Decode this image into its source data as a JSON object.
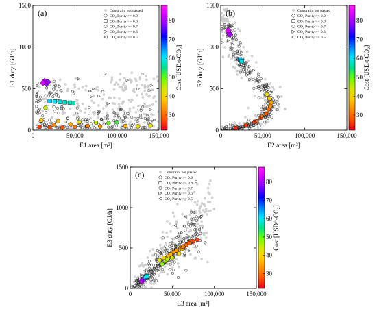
{
  "colors": {
    "constraint_fill": "#d4d4d4",
    "constraint_edge": "#b9b9b9",
    "marker_edge": "#000000",
    "colormap": [
      "#e8001e",
      "#ff4d00",
      "#ff8c00",
      "#ffcc00",
      "#d7e800",
      "#66ff00",
      "#00e08a",
      "#00e5ff",
      "#0080ff",
      "#0000ff",
      "#7d00ff",
      "#d000ff",
      "#ff1aff"
    ]
  },
  "chart_data": [
    {
      "type": "scatter",
      "panel": "(a)",
      "xlabel": "E1 area [m²]",
      "ylabel": "E1 duty [GJ/h]",
      "xlim": [
        0,
        150000
      ],
      "ylim": [
        0,
        1500
      ],
      "xticks": [
        0,
        50000,
        100000,
        150000
      ],
      "xticklabels": [
        "0",
        "50,000",
        "100,000",
        "150,000"
      ],
      "yticks": [
        0,
        500,
        1000,
        1500
      ],
      "yticklabels": [
        "0",
        "500",
        "1000",
        "1500"
      ],
      "colorbar": {
        "label": "Cost [USD/t-CO₂]",
        "min": 22,
        "max": 88,
        "ticks": [
          30,
          40,
          50,
          60,
          70,
          80
        ],
        "ticklabels": [
          "30",
          "40",
          "50",
          "60",
          "70",
          "80"
        ]
      },
      "legend": {
        "position": "top-right",
        "entries": [
          {
            "marker": "gray-circle",
            "label": "Constraint not passed"
          },
          {
            "marker": "diamond",
            "label": "CO₂ Purity >= 0.9"
          },
          {
            "marker": "square",
            "label": "CO₂ Purity >= 0.8"
          },
          {
            "marker": "circle",
            "label": "CO₂ Purity >= 0.7"
          },
          {
            "marker": "triangle-right",
            "label": "CO₂ Purity >= 0.6"
          },
          {
            "marker": "triangle-left",
            "label": "CO₂ Purity >= 0.5"
          }
        ]
      },
      "clusters": [
        {
          "group": "constraint",
          "xmin": 5000,
          "xmax": 150000,
          "ymin": 0,
          "ymax": 650,
          "count": 230,
          "decay": 0.45
        },
        {
          "group": "constraint",
          "xmin": 40000,
          "xmax": 150000,
          "ymin": 200,
          "ymax": 700,
          "count": 60,
          "decay": 1
        },
        {
          "group": "circle",
          "xmin": 4000,
          "xmax": 140000,
          "ymin": 30,
          "ymax": 280,
          "count": 120,
          "decay": 0.5
        },
        {
          "group": "circle",
          "xmin": 4000,
          "xmax": 35000,
          "ymin": 200,
          "ymax": 600,
          "count": 50,
          "decay": 1
        },
        {
          "group": "triangle-right",
          "xmin": 40000,
          "xmax": 150000,
          "ymin": 100,
          "ymax": 700,
          "count": 28,
          "decay": 1
        }
      ],
      "points": [
        {
          "x": 14000,
          "y": 590,
          "cost": 82,
          "m": "diamond"
        },
        {
          "x": 16000,
          "y": 560,
          "cost": 80,
          "m": "diamond"
        },
        {
          "x": 12000,
          "y": 570,
          "cost": 84,
          "m": "diamond"
        },
        {
          "x": 18000,
          "y": 580,
          "cost": 79,
          "m": "diamond"
        },
        {
          "x": 20000,
          "y": 350,
          "cost": 62,
          "m": "square"
        },
        {
          "x": 26000,
          "y": 345,
          "cost": 60,
          "m": "square"
        },
        {
          "x": 32000,
          "y": 340,
          "cost": 59,
          "m": "square"
        },
        {
          "x": 38000,
          "y": 335,
          "cost": 58,
          "m": "square"
        },
        {
          "x": 44000,
          "y": 330,
          "cost": 58,
          "m": "square"
        },
        {
          "x": 48000,
          "y": 325,
          "cost": 57,
          "m": "square"
        },
        {
          "x": 15000,
          "y": 270,
          "cost": 45,
          "m": "circle"
        },
        {
          "x": 10000,
          "y": 120,
          "cost": 38,
          "m": "circle"
        },
        {
          "x": 30000,
          "y": 110,
          "cost": 37,
          "m": "circle"
        },
        {
          "x": 55000,
          "y": 100,
          "cost": 42,
          "m": "circle"
        },
        {
          "x": 75000,
          "y": 90,
          "cost": 45,
          "m": "circle"
        },
        {
          "x": 90000,
          "y": 85,
          "cost": 50,
          "m": "circle"
        },
        {
          "x": 100000,
          "y": 95,
          "cost": 52,
          "m": "circle"
        },
        {
          "x": 8000,
          "y": 40,
          "cost": 26,
          "m": "circle"
        },
        {
          "x": 20000,
          "y": 35,
          "cost": 27,
          "m": "circle"
        },
        {
          "x": 35000,
          "y": 30,
          "cost": 28,
          "m": "circle"
        },
        {
          "x": 50000,
          "y": 40,
          "cost": 30,
          "m": "circle"
        },
        {
          "x": 65000,
          "y": 50,
          "cost": 32,
          "m": "circle"
        },
        {
          "x": 80000,
          "y": 45,
          "cost": 34,
          "m": "circle"
        },
        {
          "x": 110000,
          "y": 50,
          "cost": 36,
          "m": "circle"
        },
        {
          "x": 125000,
          "y": 45,
          "cost": 40,
          "m": "circle"
        },
        {
          "x": 140000,
          "y": 55,
          "cost": 42,
          "m": "circle"
        },
        {
          "x": 25000,
          "y": 60,
          "cost": 33,
          "m": "circle"
        },
        {
          "x": 45000,
          "y": 70,
          "cost": 35,
          "m": "circle"
        }
      ]
    },
    {
      "type": "scatter",
      "panel": "(b)",
      "xlabel": "E2 area [m²]",
      "ylabel": "E2 duty [GJ/h]",
      "xlim": [
        0,
        150000
      ],
      "ylim": [
        0,
        1500
      ],
      "xticks": [
        0,
        50000,
        100000,
        150000
      ],
      "xticklabels": [
        "0",
        "50,000",
        "100,000",
        "150,000"
      ],
      "yticks": [
        0,
        500,
        1000,
        1500
      ],
      "yticklabels": [
        "0",
        "500",
        "1000",
        "1500"
      ],
      "colorbar": {
        "label": "Cost [USD/t-CO₂]",
        "min": 22,
        "max": 88,
        "ticks": [
          30,
          40,
          50,
          60,
          70,
          80
        ],
        "ticklabels": [
          "30",
          "40",
          "50",
          "60",
          "70",
          "80"
        ]
      },
      "legend": {
        "position": "top-right",
        "entries": [
          {
            "marker": "gray-circle",
            "label": "Constraint not passed"
          },
          {
            "marker": "diamond",
            "label": "CO₂ Purity >= 0.9"
          },
          {
            "marker": "square",
            "label": "CO₂ Purity >= 0.8"
          },
          {
            "marker": "circle",
            "label": "CO₂ Purity >= 0.7"
          },
          {
            "marker": "triangle-right",
            "label": "CO₂ Purity >= 0.6"
          },
          {
            "marker": "triangle-left",
            "label": "CO₂ Purity >= 0.5"
          }
        ]
      },
      "curve": {
        "points": [
          [
            8000,
            1280
          ],
          [
            10000,
            1180
          ],
          [
            15000,
            1000
          ],
          [
            22000,
            850
          ],
          [
            32000,
            720
          ],
          [
            45000,
            580
          ],
          [
            55000,
            460
          ],
          [
            60000,
            350
          ],
          [
            58000,
            250
          ],
          [
            50000,
            150
          ],
          [
            38000,
            80
          ],
          [
            25000,
            35
          ],
          [
            12000,
            10
          ],
          [
            3000,
            0
          ]
        ],
        "count": 260,
        "spread": 4500,
        "constraint_count": 200,
        "constraint_spread": 9000
      },
      "points": [
        {
          "x": 10000,
          "y": 1170,
          "cost": 82,
          "m": "diamond"
        },
        {
          "x": 9000,
          "y": 1200,
          "cost": 84,
          "m": "diamond"
        },
        {
          "x": 11000,
          "y": 1150,
          "cost": 80,
          "m": "diamond"
        },
        {
          "x": 23000,
          "y": 850,
          "cost": 62,
          "m": "square"
        },
        {
          "x": 25000,
          "y": 830,
          "cost": 60,
          "m": "square"
        },
        {
          "x": 55000,
          "y": 430,
          "cost": 42,
          "m": "circle"
        },
        {
          "x": 58000,
          "y": 380,
          "cost": 38,
          "m": "circle"
        },
        {
          "x": 60000,
          "y": 330,
          "cost": 35,
          "m": "circle"
        },
        {
          "x": 59000,
          "y": 290,
          "cost": 33,
          "m": "circle"
        },
        {
          "x": 57000,
          "y": 250,
          "cost": 30,
          "m": "circle"
        },
        {
          "x": 54000,
          "y": 200,
          "cost": 28,
          "m": "circle"
        },
        {
          "x": 48000,
          "y": 150,
          "cost": 27,
          "m": "circle"
        },
        {
          "x": 40000,
          "y": 100,
          "cost": 26,
          "m": "circle"
        },
        {
          "x": 30000,
          "y": 60,
          "cost": 26,
          "m": "circle"
        },
        {
          "x": 18000,
          "y": 25,
          "cost": 25,
          "m": "circle"
        },
        {
          "x": 42000,
          "y": 110,
          "cost": 30,
          "m": "triangle-left"
        },
        {
          "x": 50000,
          "y": 170,
          "cost": 32,
          "m": "triangle-right"
        }
      ]
    },
    {
      "type": "scatter",
      "panel": "(c)",
      "xlabel": "E3 area [m²]",
      "ylabel": "E3 duty [GJ/h]",
      "xlim": [
        0,
        150000
      ],
      "ylim": [
        0,
        1500
      ],
      "xticks": [
        0,
        50000,
        100000,
        150000
      ],
      "xticklabels": [
        "0",
        "50,000",
        "100,000",
        "150,000"
      ],
      "yticks": [
        0,
        500,
        1000,
        1500
      ],
      "yticklabels": [
        "0",
        "500",
        "1000",
        "1500"
      ],
      "colorbar": {
        "label": "Cost [USD/t-CO₂]",
        "min": 22,
        "max": 88,
        "ticks": [
          30,
          40,
          50,
          60,
          70,
          80
        ],
        "ticklabels": [
          "30",
          "40",
          "50",
          "60",
          "70",
          "80"
        ]
      },
      "legend": {
        "position": "top-left",
        "entries": [
          {
            "marker": "gray-circle",
            "label": "Constraint not passed"
          },
          {
            "marker": "diamond",
            "label": "CO₂ Purity >= 0.9"
          },
          {
            "marker": "square",
            "label": "CO₂ Purity >= 0.8"
          },
          {
            "marker": "circle",
            "label": "CO₂ Purity >= 0.7"
          },
          {
            "marker": "triangle-right",
            "label": "CO₂ Purity >= 0.6"
          },
          {
            "marker": "triangle-left",
            "label": "CO₂ Purity >= 0.5"
          }
        ]
      },
      "band": {
        "x0": 5000,
        "y0": 20,
        "x1": 85000,
        "y1": 780,
        "count": 240,
        "width": 130,
        "constraint_count": 230,
        "constraint_width": 190,
        "constraint_x1": 95000,
        "constraint_y1": 1000
      },
      "points": [
        {
          "x": 14000,
          "y": 90,
          "cost": 82,
          "m": "diamond"
        },
        {
          "x": 16000,
          "y": 110,
          "cost": 80,
          "m": "diamond"
        },
        {
          "x": 18000,
          "y": 130,
          "cost": 62,
          "m": "square"
        },
        {
          "x": 20000,
          "y": 150,
          "cost": 60,
          "m": "square"
        },
        {
          "x": 35000,
          "y": 350,
          "cost": 42,
          "m": "circle"
        },
        {
          "x": 40000,
          "y": 380,
          "cost": 40,
          "m": "circle"
        },
        {
          "x": 42000,
          "y": 340,
          "cost": 45,
          "m": "circle"
        },
        {
          "x": 45000,
          "y": 400,
          "cost": 38,
          "m": "circle"
        },
        {
          "x": 48000,
          "y": 420,
          "cost": 36,
          "m": "circle"
        },
        {
          "x": 50000,
          "y": 380,
          "cost": 44,
          "m": "circle"
        },
        {
          "x": 52000,
          "y": 450,
          "cost": 35,
          "m": "circle"
        },
        {
          "x": 55000,
          "y": 470,
          "cost": 34,
          "m": "circle"
        },
        {
          "x": 58000,
          "y": 430,
          "cost": 40,
          "m": "circle"
        },
        {
          "x": 60000,
          "y": 500,
          "cost": 33,
          "m": "circle"
        },
        {
          "x": 63000,
          "y": 520,
          "cost": 32,
          "m": "circle"
        },
        {
          "x": 67000,
          "y": 540,
          "cost": 30,
          "m": "circle"
        },
        {
          "x": 70000,
          "y": 560,
          "cost": 29,
          "m": "circle"
        },
        {
          "x": 75000,
          "y": 580,
          "cost": 27,
          "m": "circle"
        },
        {
          "x": 80000,
          "y": 600,
          "cost": 26,
          "m": "circle"
        },
        {
          "x": 38000,
          "y": 300,
          "cost": 48,
          "m": "circle"
        },
        {
          "x": 44000,
          "y": 360,
          "cost": 46,
          "m": "circle"
        },
        {
          "x": 62000,
          "y": 480,
          "cost": 36,
          "m": "triangle-right"
        },
        {
          "x": 72000,
          "y": 590,
          "cost": 28,
          "m": "triangle-left"
        }
      ]
    }
  ]
}
